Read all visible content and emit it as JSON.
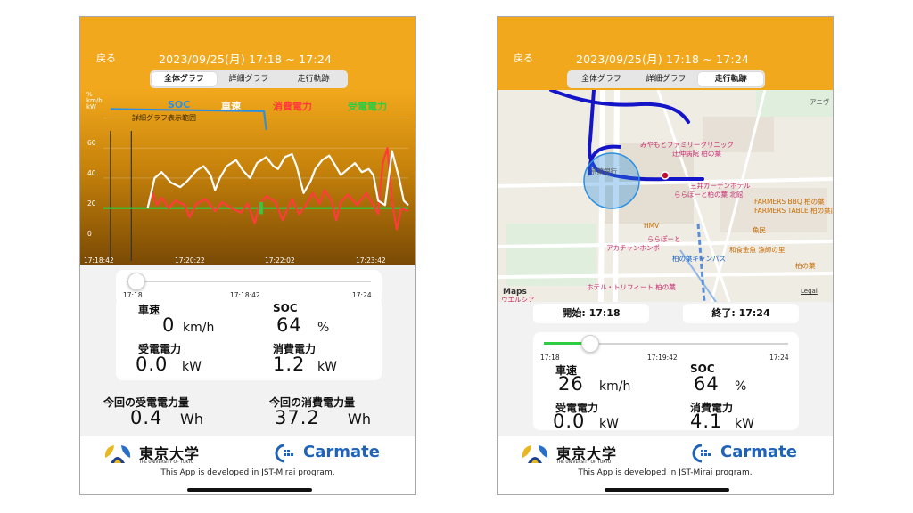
{
  "header": {
    "back_label": "戻る",
    "date_range": "2023/09/25(月) 17:18 ~ 17:24",
    "tabs": [
      "全体グラフ",
      "詳細グラフ",
      "走行軌跡"
    ]
  },
  "colors": {
    "header": "#f2a81d",
    "soc": "#2d8fe0",
    "speed": "#ffffff",
    "consumed": "#ff3b3b",
    "received": "#2ecc40"
  },
  "left": {
    "active_tab": "全体グラフ",
    "chart_data": {
      "type": "line",
      "unit_labels": [
        "%",
        "km/h",
        "kW"
      ],
      "legend": [
        {
          "name": "SOC",
          "color": "#2d8fe0"
        },
        {
          "name": "車速",
          "color": "#ffffff"
        },
        {
          "name": "消費電力",
          "color": "#ff3b3b"
        },
        {
          "name": "受電電力",
          "color": "#2ecc40"
        }
      ],
      "range_label": "詳細グラフ表示範囲",
      "yticks": [
        60,
        40,
        20,
        0
      ],
      "ylim": [
        -15,
        68
      ],
      "xticks": [
        "17:18:42",
        "17:20:22",
        "17:22:02",
        "17:23:42"
      ],
      "grid": true,
      "series": [
        {
          "name": "SOC",
          "values": [
            [
              17.3,
              66
            ],
            [
              23.9,
              64.5
            ],
            [
              24.0,
              52
            ]
          ]
        },
        {
          "name": "車速",
          "values": [
            [
              18.9,
              0
            ],
            [
              19.2,
              20
            ],
            [
              19.5,
              24
            ],
            [
              19.9,
              17
            ],
            [
              20.3,
              14
            ],
            [
              20.6,
              18
            ],
            [
              21.0,
              25
            ],
            [
              21.3,
              28
            ],
            [
              21.6,
              22
            ],
            [
              21.8,
              12
            ],
            [
              22.0,
              20
            ],
            [
              22.3,
              28
            ],
            [
              22.7,
              32
            ],
            [
              23.0,
              25
            ],
            [
              23.3,
              20
            ],
            [
              23.6,
              30
            ],
            [
              24.0,
              34
            ],
            [
              24.3,
              28
            ],
            [
              24.5,
              26
            ],
            [
              24.8,
              34
            ],
            [
              25.1,
              36
            ],
            [
              25.3,
              28
            ],
            [
              25.6,
              10
            ],
            [
              25.9,
              18
            ],
            [
              26.1,
              26
            ],
            [
              26.4,
              32
            ],
            [
              26.7,
              35
            ],
            [
              26.9,
              30
            ],
            [
              27.2,
              22
            ],
            [
              27.5,
              26
            ],
            [
              27.8,
              30
            ],
            [
              28.1,
              24
            ],
            [
              28.4,
              26
            ],
            [
              28.6,
              22
            ],
            [
              28.8,
              5
            ],
            [
              29.1,
              2
            ],
            [
              29.4,
              38
            ],
            [
              29.7,
              20
            ],
            [
              29.9,
              5
            ],
            [
              30.1,
              2
            ]
          ]
        },
        {
          "name": "消費電力",
          "values": [
            [
              18.9,
              0
            ],
            [
              19.1,
              10
            ],
            [
              19.3,
              2
            ],
            [
              19.5,
              7
            ],
            [
              19.8,
              0
            ],
            [
              20.1,
              5
            ],
            [
              20.5,
              2
            ],
            [
              20.7,
              -6
            ],
            [
              21.0,
              3
            ],
            [
              21.4,
              6
            ],
            [
              21.8,
              -2
            ],
            [
              22.1,
              4
            ],
            [
              22.5,
              0
            ],
            [
              22.9,
              -3
            ],
            [
              23.2,
              3
            ],
            [
              23.5,
              -10
            ],
            [
              23.7,
              2
            ],
            [
              24.0,
              8
            ],
            [
              24.4,
              4
            ],
            [
              24.7,
              -8
            ],
            [
              25.1,
              6
            ],
            [
              25.4,
              -4
            ],
            [
              25.7,
              2
            ],
            [
              26.0,
              10
            ],
            [
              26.3,
              3
            ],
            [
              26.5,
              12
            ],
            [
              26.8,
              5
            ],
            [
              27.0,
              -8
            ],
            [
              27.2,
              4
            ],
            [
              27.5,
              9
            ],
            [
              27.9,
              2
            ],
            [
              28.3,
              10
            ],
            [
              28.6,
              2
            ],
            [
              28.8,
              -4
            ],
            [
              29.0,
              30
            ],
            [
              29.2,
              40
            ],
            [
              29.4,
              5
            ],
            [
              29.6,
              -14
            ],
            [
              29.8,
              0
            ],
            [
              30.1,
              -2
            ]
          ]
        },
        {
          "name": "受電電力",
          "values": [
            [
              17.0,
              0
            ],
            [
              30.1,
              0
            ]
          ]
        }
      ]
    },
    "slider": {
      "start": "17:18",
      "current": "17:18:42",
      "end": "17:24",
      "position": 0.04
    },
    "stats": {
      "speed_label": "車速",
      "speed_value": "0",
      "speed_unit": "km/h",
      "soc_label": "SOC",
      "soc_value": "64",
      "soc_unit": "%",
      "received_label": "受電電力",
      "received_value": "0.0",
      "received_unit": "kW",
      "consumed_label": "消費電力",
      "consumed_value": "1.2",
      "consumed_unit": "kW"
    },
    "totals": {
      "received_label": "今回の受電電力量",
      "received_value": "0.4",
      "received_unit": "Wh",
      "consumed_label": "今回の消費電力量",
      "consumed_value": "37.2",
      "consumed_unit": "Wh"
    }
  },
  "right": {
    "active_tab": "走行軌跡",
    "map": {
      "pois": [
        {
          "text": "みやもとファミリークリニック",
          "color": "pink"
        },
        {
          "text": "辻仲病院 柏の葉",
          "color": "pink"
        },
        {
          "text": "京葉銀行",
          "color": "gray"
        },
        {
          "text": "三井ガーデンホテル",
          "color": "pink"
        },
        {
          "text": "ららぽーと柏の葉 北館",
          "color": "pink"
        },
        {
          "text": "FARMERS BBQ 柏の葉",
          "color": "orange"
        },
        {
          "text": "FARMERS TABLE 柏の葉店",
          "color": "orange"
        },
        {
          "text": "HMV",
          "color": "orange"
        },
        {
          "text": "魚民",
          "color": "orange"
        },
        {
          "text": "ららぽーと",
          "color": "pink"
        },
        {
          "text": "アカチャンホンポ",
          "color": "pink"
        },
        {
          "text": "和食金魚 漁師の里",
          "color": "orange"
        },
        {
          "text": "柏の葉キャンパス",
          "color": "blue"
        },
        {
          "text": "柏の葉",
          "color": "orange"
        },
        {
          "text": "ホテル・トリフィート 柏の葉",
          "color": "pink"
        },
        {
          "text": "ウエルシア",
          "color": "pink"
        },
        {
          "text": "アニヴ",
          "color": "gray"
        }
      ],
      "brand": "Maps",
      "legal": "Legal"
    },
    "start_label": "開始: 17:18",
    "end_label": "終了: 17:24",
    "slider": {
      "start": "17:18",
      "current": "17:19:42",
      "end": "17:24",
      "position": 0.19
    },
    "stats": {
      "speed_label": "車速",
      "speed_value": "26",
      "speed_unit": "km/h",
      "soc_label": "SOC",
      "soc_value": "64",
      "soc_unit": "%",
      "received_label": "受電電力",
      "received_value": "0.0",
      "received_unit": "kW",
      "consumed_label": "消費電力",
      "consumed_value": "4.1",
      "consumed_unit": "kW"
    }
  },
  "footer": {
    "university_name": "東京大学",
    "university_sub": "THE UNIVERSITY OF TOKYO",
    "company_name": "Carmate",
    "dev_note": "This App is developed in JST-Mirai program."
  }
}
